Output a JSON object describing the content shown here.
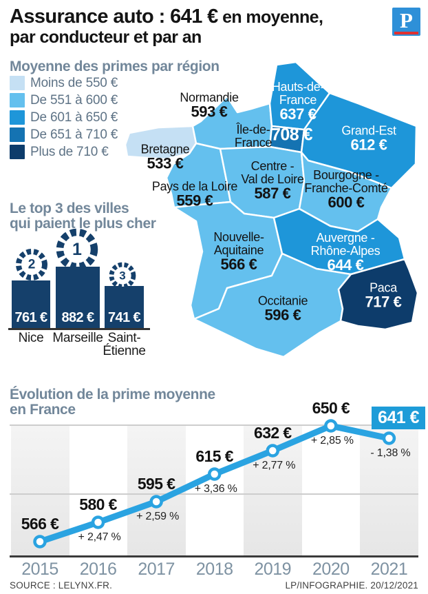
{
  "header": {
    "title_strong": "Assurance auto : 641 €",
    "title_light": " en moyenne,",
    "title_line2": "par conducteur et par an",
    "logo_letter": "P",
    "logo_color": "#2e90d8",
    "logo_bar_color": "#e03131"
  },
  "map_section": {
    "legend_title": "Moyenne des primes par région",
    "legend": [
      {
        "label": "Moins de 550 €",
        "color": "#c5e0f4"
      },
      {
        "label": "De 551 à 600 €",
        "color": "#64c0ee"
      },
      {
        "label": "De 601 à 650 €",
        "color": "#1e96d9"
      },
      {
        "label": "De 651 à 710 €",
        "color": "#1573b2"
      },
      {
        "label": "Plus de 710 €",
        "color": "#0d3c6b"
      }
    ],
    "regions": [
      {
        "id": "bretagne",
        "name_lines": [
          "Bretagne"
        ],
        "value": "533 €",
        "tier": 0,
        "text": "dark"
      },
      {
        "id": "normandie",
        "name_lines": [
          "Normandie"
        ],
        "value": "593 €",
        "tier": 1,
        "text": "dark"
      },
      {
        "id": "hauts-de-france",
        "name_lines": [
          "Hauts-de-",
          "France"
        ],
        "value": "637 €",
        "tier": 2,
        "text": "light"
      },
      {
        "id": "ile-de-france",
        "name_lines": [
          "Île-de-",
          "France"
        ],
        "value": "708 €",
        "tier": 3,
        "text": "dark",
        "value_text": "light"
      },
      {
        "id": "grand-est",
        "name_lines": [
          "Grand-Est"
        ],
        "value": "612 €",
        "tier": 2,
        "text": "light"
      },
      {
        "id": "pays-de-la-loire",
        "name_lines": [
          "Pays de la Loire"
        ],
        "value": "559 €",
        "tier": 1,
        "text": "dark"
      },
      {
        "id": "centre-val-de-loire",
        "name_lines": [
          "Centre -",
          "Val de Loire"
        ],
        "value": "587 €",
        "tier": 1,
        "text": "dark"
      },
      {
        "id": "bourgogne-franche-comte",
        "name_lines": [
          "Bourgogne -",
          "Franche-Comté"
        ],
        "value": "600 €",
        "tier": 1,
        "text": "dark"
      },
      {
        "id": "nouvelle-aquitaine",
        "name_lines": [
          "Nouvelle-",
          "Aquitaine"
        ],
        "value": "566 €",
        "tier": 1,
        "text": "dark"
      },
      {
        "id": "auvergne-rhone-alpes",
        "name_lines": [
          "Auvergne -",
          "Rhône-Alpes"
        ],
        "value": "644 €",
        "tier": 2,
        "text": "light"
      },
      {
        "id": "occitanie",
        "name_lines": [
          "Occitanie"
        ],
        "value": "596 €",
        "tier": 1,
        "text": "dark"
      },
      {
        "id": "paca",
        "name_lines": [
          "Paca"
        ],
        "value": "717 €",
        "tier": 4,
        "text": "light"
      }
    ]
  },
  "top3": {
    "title_lines": [
      "Le top 3 des villes",
      "qui paient le plus cher"
    ],
    "bar_color": "#15406b",
    "cities": [
      {
        "rank": "2",
        "name_lines": [
          "Nice"
        ],
        "value": "761 €"
      },
      {
        "rank": "1",
        "name_lines": [
          "Marseille"
        ],
        "value": "882 €"
      },
      {
        "rank": "3",
        "name_lines": [
          "Saint-",
          "Étienne"
        ],
        "value": "741 €"
      }
    ]
  },
  "evolution": {
    "title_lines": [
      "Évolution de la prime moyenne",
      "en France"
    ],
    "line_color": "#2aa3e1",
    "highlight_bg": "#1e9cd8",
    "years": [
      "2015",
      "2016",
      "2017",
      "2018",
      "2019",
      "2020",
      "2021"
    ],
    "values": [
      566,
      580,
      595,
      615,
      632,
      650,
      641
    ],
    "value_labels": [
      "566 €",
      "580 €",
      "595 €",
      "615 €",
      "632 €",
      "650 €",
      "641 €"
    ],
    "pct_labels": [
      "",
      "+ 2,47 %",
      "+ 2,59 %",
      "+ 3,36 %",
      "+ 2,77 %",
      "+ 2,85 %",
      "- 1,38 %"
    ]
  },
  "footer": {
    "source": "SOURCE : LELYNX.FR.",
    "credit": "LP/INFOGRAPHIE. 20/12/2021"
  },
  "chart_data": [
    {
      "type": "heatmap",
      "subtype": "choropleth-map-of-france",
      "title": "Moyenne des primes par région",
      "bins": [
        "Moins de 550 €",
        "De 551 à 600 €",
        "De 601 à 650 €",
        "De 651 à 710 €",
        "Plus de 710 €"
      ],
      "regions": [
        {
          "name": "Bretagne",
          "value": 533
        },
        {
          "name": "Normandie",
          "value": 593
        },
        {
          "name": "Hauts-de-France",
          "value": 637
        },
        {
          "name": "Île-de-France",
          "value": 708
        },
        {
          "name": "Grand-Est",
          "value": 612
        },
        {
          "name": "Pays de la Loire",
          "value": 559
        },
        {
          "name": "Centre - Val de Loire",
          "value": 587
        },
        {
          "name": "Bourgogne - Franche-Comté",
          "value": 600
        },
        {
          "name": "Nouvelle-Aquitaine",
          "value": 566
        },
        {
          "name": "Auvergne - Rhône-Alpes",
          "value": 644
        },
        {
          "name": "Occitanie",
          "value": 596
        },
        {
          "name": "Paca",
          "value": 717
        }
      ],
      "unit": "EUR par conducteur et par an"
    },
    {
      "type": "bar",
      "subtype": "podium",
      "title": "Le top 3 des villes qui paient le plus cher",
      "categories": [
        "Nice",
        "Marseille",
        "Saint-Étienne"
      ],
      "values": [
        761,
        882,
        741
      ],
      "ranks": [
        2,
        1,
        3
      ],
      "unit": "EUR"
    },
    {
      "type": "line",
      "title": "Évolution de la prime moyenne en France",
      "x": [
        "2015",
        "2016",
        "2017",
        "2018",
        "2019",
        "2020",
        "2021"
      ],
      "values": [
        566,
        580,
        595,
        615,
        632,
        650,
        641
      ],
      "pct_change": [
        null,
        2.47,
        2.59,
        3.36,
        2.77,
        2.85,
        -1.38
      ],
      "unit": "EUR",
      "ylim": [
        540,
        680
      ],
      "grid": "horizontal gridlines + alternating vertical year bands",
      "legend": "none"
    }
  ]
}
